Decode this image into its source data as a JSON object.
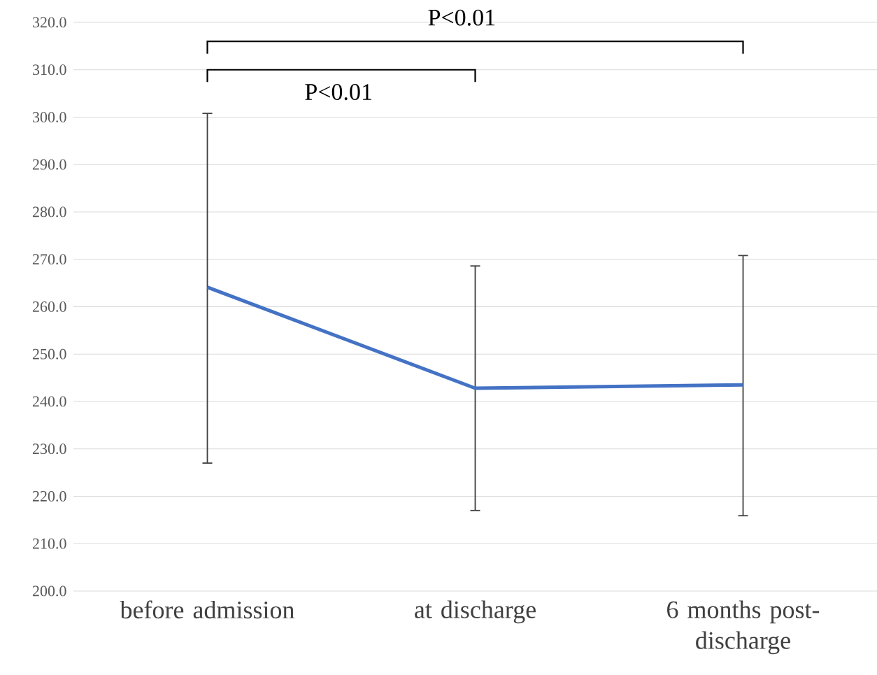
{
  "chart_data": {
    "type": "line",
    "categories": [
      "before admission",
      "at discharge",
      "6 months post-discharge"
    ],
    "values": [
      264.1,
      242.8,
      243.5
    ],
    "errors": [
      [
        227.0,
        300.8
      ],
      [
        217.0,
        268.6
      ],
      [
        215.9,
        270.8
      ]
    ],
    "color": "#4472c4",
    "ylim": [
      200,
      320
    ],
    "yticks": [
      {
        "value": 200,
        "label": "200.0"
      },
      {
        "value": 210,
        "label": "210.0"
      },
      {
        "value": 220,
        "label": "220.0"
      },
      {
        "value": 230,
        "label": "230.0"
      },
      {
        "value": 240,
        "label": "240.0"
      },
      {
        "value": 250,
        "label": "250.0"
      },
      {
        "value": 260,
        "label": "260.0"
      },
      {
        "value": 270,
        "label": "270.0"
      },
      {
        "value": 280,
        "label": "280.0"
      },
      {
        "value": 290,
        "label": "290.0"
      },
      {
        "value": 300,
        "label": "300.0"
      },
      {
        "value": 310,
        "label": "310.0"
      },
      {
        "value": 320,
        "label": "320.0"
      }
    ],
    "grid": "y",
    "annotations": [
      "P<0.01",
      "P<0.01"
    ]
  }
}
